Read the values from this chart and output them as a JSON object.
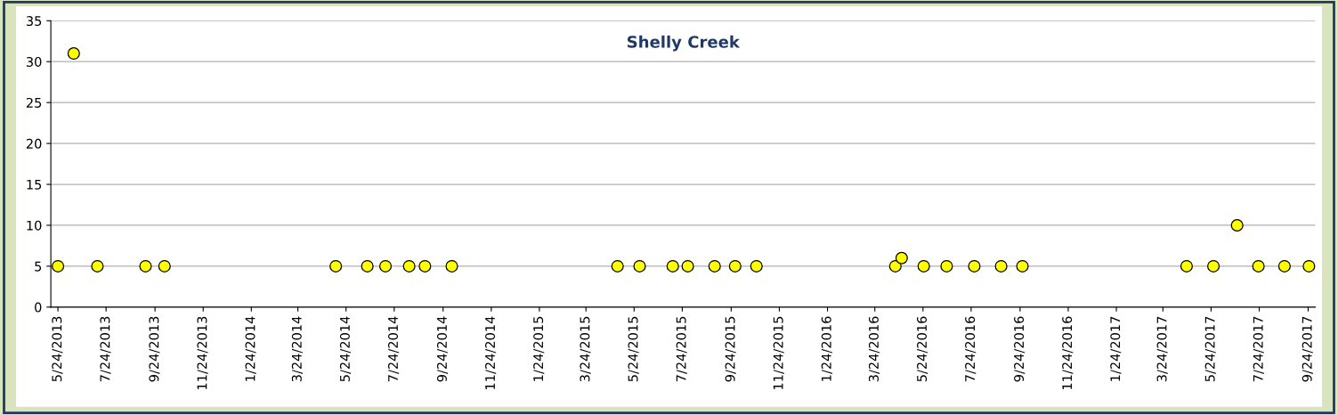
{
  "chart_data": {
    "type": "scatter",
    "title": "Shelly Creek",
    "x": [
      "2013-05-24",
      "2013-06-13",
      "2013-07-13",
      "2013-09-12",
      "2013-10-06",
      "2014-05-11",
      "2014-06-20",
      "2014-07-13",
      "2014-08-12",
      "2014-09-01",
      "2014-10-05",
      "2015-05-03",
      "2015-05-31",
      "2015-07-12",
      "2015-07-31",
      "2015-09-03",
      "2015-09-29",
      "2015-10-26",
      "2016-04-19",
      "2016-04-27",
      "2016-05-25",
      "2016-06-23",
      "2016-07-28",
      "2016-08-31",
      "2016-09-27",
      "2017-04-23",
      "2017-05-27",
      "2017-06-26",
      "2017-07-23",
      "2017-08-25",
      "2017-09-25"
    ],
    "series": [
      {
        "color": "#ffff00",
        "values": [
          5,
          31,
          5,
          5,
          5,
          5,
          5,
          5,
          5,
          5,
          5,
          5,
          5,
          5,
          5,
          5,
          5,
          5,
          5,
          6,
          5,
          5,
          5,
          5,
          5,
          5,
          5,
          10,
          5,
          5,
          5
        ]
      }
    ],
    "marker": "circle",
    "grid": "y",
    "ylim": [
      0,
      35
    ],
    "yticks": [
      0,
      5,
      10,
      15,
      20,
      25,
      30,
      35
    ],
    "xlim": [
      "2013-05-15",
      "2017-10-03"
    ],
    "xticks": [
      {
        "value": "2013-05-24",
        "label": "5/24/2013"
      },
      {
        "value": "2013-07-24",
        "label": "7/24/2013"
      },
      {
        "value": "2013-09-24",
        "label": "9/24/2013"
      },
      {
        "value": "2013-11-24",
        "label": "11/24/2013"
      },
      {
        "value": "2014-01-24",
        "label": "1/24/2014"
      },
      {
        "value": "2014-03-24",
        "label": "3/24/2014"
      },
      {
        "value": "2014-05-24",
        "label": "5/24/2014"
      },
      {
        "value": "2014-07-24",
        "label": "7/24/2014"
      },
      {
        "value": "2014-09-24",
        "label": "9/24/2014"
      },
      {
        "value": "2014-11-24",
        "label": "11/24/2014"
      },
      {
        "value": "2015-01-24",
        "label": "1/24/2015"
      },
      {
        "value": "2015-03-24",
        "label": "3/24/2015"
      },
      {
        "value": "2015-05-24",
        "label": "5/24/2015"
      },
      {
        "value": "2015-07-24",
        "label": "7/24/2015"
      },
      {
        "value": "2015-09-24",
        "label": "9/24/2015"
      },
      {
        "value": "2015-11-24",
        "label": "11/24/2015"
      },
      {
        "value": "2016-01-24",
        "label": "1/24/2016"
      },
      {
        "value": "2016-03-24",
        "label": "3/24/2016"
      },
      {
        "value": "2016-05-24",
        "label": "5/24/2016"
      },
      {
        "value": "2016-07-24",
        "label": "7/24/2016"
      },
      {
        "value": "2016-09-24",
        "label": "9/24/2016"
      },
      {
        "value": "2016-11-24",
        "label": "11/24/2016"
      },
      {
        "value": "2017-01-24",
        "label": "1/24/2017"
      },
      {
        "value": "2017-03-24",
        "label": "3/24/2017"
      },
      {
        "value": "2017-05-24",
        "label": "5/24/2017"
      },
      {
        "value": "2017-07-24",
        "label": "7/24/2017"
      },
      {
        "value": "2017-09-24",
        "label": "9/24/2017"
      }
    ]
  }
}
